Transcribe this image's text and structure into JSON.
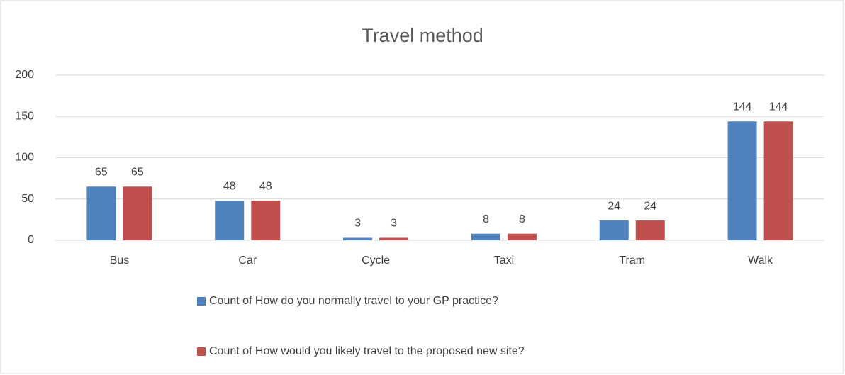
{
  "chart_data": {
    "type": "bar",
    "title": "Travel method",
    "categories": [
      "Bus",
      "Car",
      "Cycle",
      "Taxi",
      "Tram",
      "Walk"
    ],
    "series": [
      {
        "name": "Count of How do you normally travel to your GP practice?",
        "color": "#4f81bd",
        "values": [
          65,
          48,
          3,
          8,
          24,
          144
        ]
      },
      {
        "name": "Count of How would you likely travel to the proposed new site?",
        "color": "#c0504d",
        "values": [
          65,
          48,
          3,
          8,
          24,
          144
        ]
      }
    ],
    "ylim": [
      0,
      200
    ],
    "yticks": [
      0,
      50,
      100,
      150,
      200
    ],
    "grid": true,
    "legend": "bottom"
  }
}
